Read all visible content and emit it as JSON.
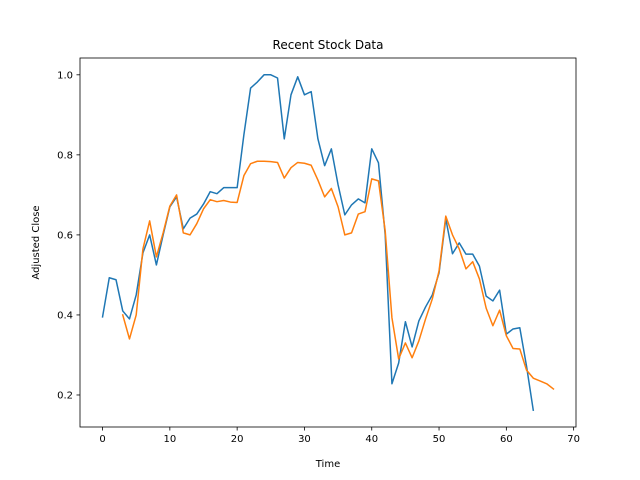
{
  "chart_data": {
    "type": "line",
    "title": "Recent Stock Data",
    "xlabel": "Time",
    "ylabel": "Adjusted Close",
    "xlim": [
      -3.35,
      70.35
    ],
    "ylim": [
      0.12,
      1.042
    ],
    "xticks": [
      0,
      10,
      20,
      30,
      40,
      50,
      60,
      70
    ],
    "yticks": [
      0.2,
      0.4,
      0.6,
      0.8,
      1.0
    ],
    "xtick_labels": [
      "0",
      "10",
      "20",
      "30",
      "40",
      "50",
      "60",
      "70"
    ],
    "ytick_labels": [
      "0.2",
      "0.4",
      "0.6",
      "0.8",
      "1.0"
    ],
    "grid": false,
    "legend": "none",
    "series": [
      {
        "color": "#1f77b4",
        "x": [
          0,
          1,
          2,
          3,
          4,
          5,
          6,
          7,
          8,
          9,
          10,
          11,
          12,
          13,
          14,
          15,
          16,
          17,
          18,
          19,
          20,
          21,
          22,
          23,
          24,
          25,
          26,
          27,
          28,
          29,
          30,
          31,
          32,
          33,
          34,
          35,
          36,
          37,
          38,
          39,
          40,
          41,
          42,
          43,
          44,
          45,
          46,
          47,
          48,
          49,
          50,
          51,
          52,
          53,
          54,
          55,
          56,
          57,
          58,
          59,
          60,
          61,
          62,
          63,
          64
        ],
        "y": [
          0.395,
          0.493,
          0.488,
          0.41,
          0.39,
          0.45,
          0.555,
          0.6,
          0.525,
          0.6,
          0.67,
          0.695,
          0.615,
          0.642,
          0.652,
          0.677,
          0.708,
          0.703,
          0.718,
          0.718,
          0.718,
          0.85,
          0.967,
          0.982,
          1.0,
          1.0,
          0.992,
          0.84,
          0.95,
          0.995,
          0.95,
          0.958,
          0.84,
          0.773,
          0.815,
          0.725,
          0.65,
          0.675,
          0.69,
          0.68,
          0.815,
          0.78,
          0.6,
          0.228,
          0.28,
          0.383,
          0.32,
          0.385,
          0.42,
          0.45,
          0.505,
          0.64,
          0.553,
          0.58,
          0.552,
          0.552,
          0.522,
          0.447,
          0.435,
          0.462,
          0.352,
          0.365,
          0.368,
          0.272,
          0.162
        ]
      },
      {
        "color": "#ff7f0e",
        "x": [
          3,
          4,
          5,
          6,
          7,
          8,
          9,
          10,
          11,
          12,
          13,
          14,
          15,
          16,
          17,
          18,
          19,
          20,
          21,
          22,
          23,
          24,
          25,
          26,
          27,
          28,
          29,
          30,
          31,
          32,
          33,
          34,
          35,
          36,
          37,
          38,
          39,
          40,
          41,
          42,
          43,
          44,
          45,
          46,
          47,
          48,
          49,
          50,
          51,
          52,
          53,
          54,
          55,
          56,
          57,
          58,
          59,
          60,
          61,
          62,
          63,
          64,
          65,
          66,
          67
        ],
        "y": [
          0.4,
          0.34,
          0.4,
          0.565,
          0.635,
          0.545,
          0.605,
          0.672,
          0.7,
          0.605,
          0.6,
          0.628,
          0.665,
          0.688,
          0.683,
          0.686,
          0.682,
          0.681,
          0.748,
          0.778,
          0.784,
          0.784,
          0.783,
          0.781,
          0.742,
          0.768,
          0.781,
          0.779,
          0.774,
          0.737,
          0.695,
          0.716,
          0.67,
          0.6,
          0.605,
          0.652,
          0.658,
          0.74,
          0.735,
          0.61,
          0.393,
          0.29,
          0.33,
          0.293,
          0.335,
          0.39,
          0.44,
          0.51,
          0.647,
          0.6,
          0.565,
          0.515,
          0.533,
          0.49,
          0.417,
          0.373,
          0.412,
          0.348,
          0.316,
          0.315,
          0.262,
          0.242,
          0.235,
          0.228,
          0.215
        ]
      }
    ]
  }
}
